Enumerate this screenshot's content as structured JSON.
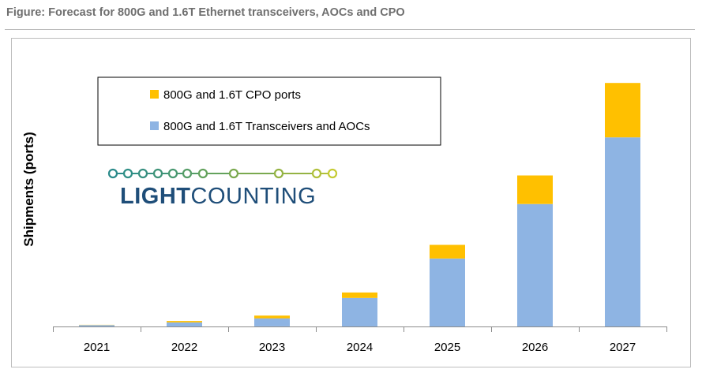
{
  "figure_title": "Figure: Forecast for 800G and 1.6T Ethernet transceivers, AOCs and CPO",
  "logo": {
    "text": "LIGHTCOUNTING",
    "bold_part": "LIGHT",
    "regular_part": "COUNTING"
  },
  "colors": {
    "transceivers": "#8eb4e3",
    "cpo": "#ffc000",
    "axis": "#8c8c8c",
    "title": "#6f6f6f",
    "logo_text": "#1f4e79"
  },
  "chart_data": {
    "type": "bar",
    "stacked": true,
    "title": "Forecast for 800G and 1.6T Ethernet transceivers, AOCs and CPO",
    "xlabel": "",
    "ylabel": "Shipments (ports)",
    "categories": [
      "2021",
      "2022",
      "2023",
      "2024",
      "2025",
      "2026",
      "2027"
    ],
    "series": [
      {
        "name": "800G and 1.6T Transceivers and AOCs",
        "color": "#8eb4e3",
        "values": [
          0.5,
          1.5,
          3.0,
          10.5,
          25.0,
          45.0,
          69.5
        ]
      },
      {
        "name": "800G and 1.6T CPO ports",
        "color": "#ffc000",
        "values": [
          0.1,
          0.5,
          1.0,
          2.0,
          5.0,
          10.5,
          20.0
        ]
      }
    ],
    "legend_order": [
      "800G and 1.6T CPO ports",
      "800G and 1.6T Transceivers and AOCs"
    ],
    "ylim": [
      0,
      100
    ],
    "grid": false,
    "legend_position": "top-left"
  }
}
